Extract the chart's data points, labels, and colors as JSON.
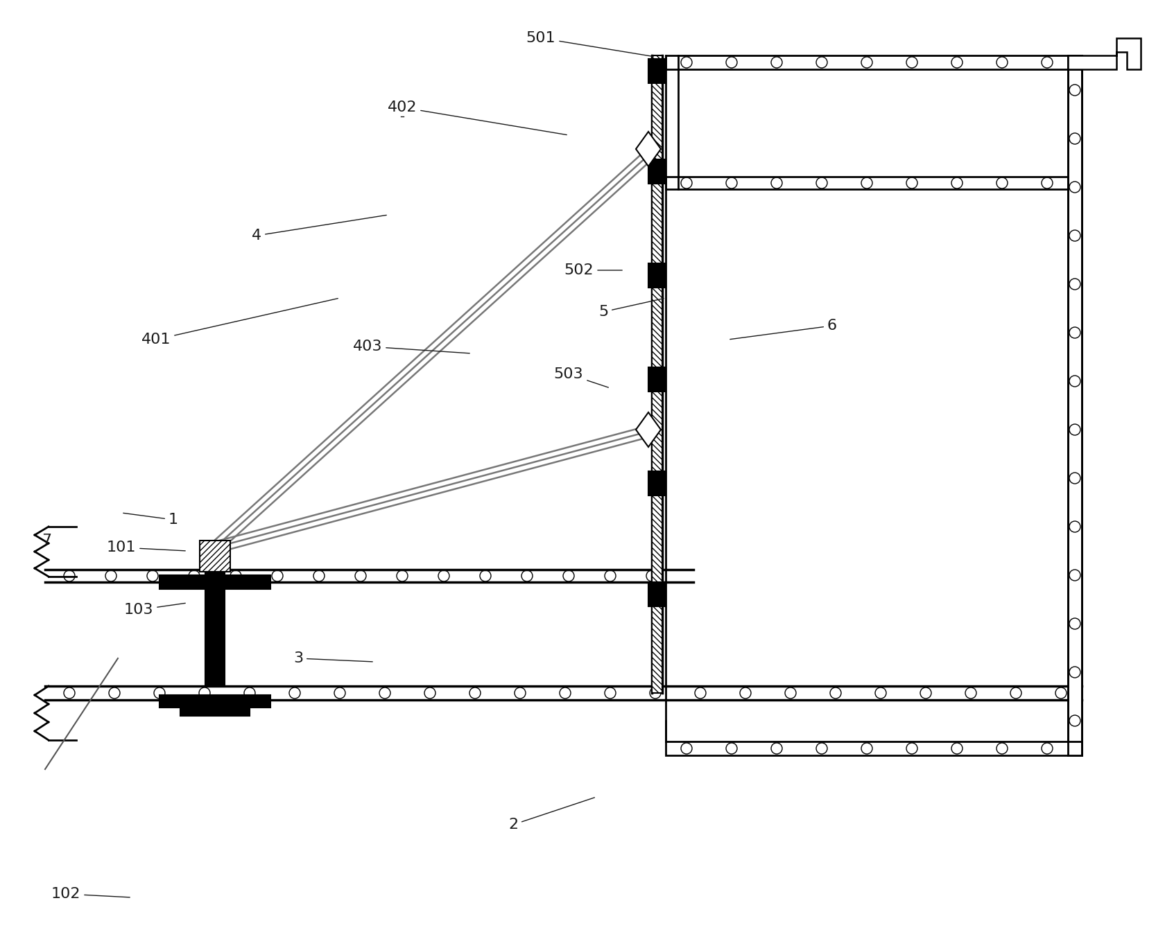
{
  "bg_color": "#ffffff",
  "line_color": "#000000",
  "gray_color": "#808080",
  "brace_color": "#888888",
  "label_color": "#1a1a1a",
  "figsize": [
    16.81,
    13.68
  ],
  "dpi": 100
}
